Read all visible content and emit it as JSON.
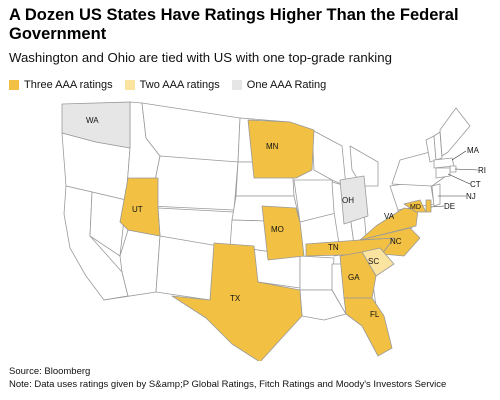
{
  "title": "A Dozen US States Have Ratings Higher Than the Federal Government",
  "subtitle": "Washington and Ohio are tied with US with one top-grade ranking",
  "colors": {
    "three_aaa": "#F2C143",
    "two_aaa": "#FBE3A0",
    "one_aaa": "#E6E6E6",
    "none": "#FFFFFF",
    "border": "#9A9A9A"
  },
  "legend": [
    {
      "label": "Three AAA ratings",
      "color": "#F2C143"
    },
    {
      "label": "Two AAA ratings",
      "color": "#FBE3A0"
    },
    {
      "label": "One AAA Rating",
      "color": "#E6E6E6"
    }
  ],
  "states": [
    {
      "abbr": "WA",
      "aaa_count": 1
    },
    {
      "abbr": "MN",
      "aaa_count": 3
    },
    {
      "abbr": "UT",
      "aaa_count": 3
    },
    {
      "abbr": "MO",
      "aaa_count": 3
    },
    {
      "abbr": "OH",
      "aaa_count": 1
    },
    {
      "abbr": "TX",
      "aaa_count": 3
    },
    {
      "abbr": "TN",
      "aaa_count": 3
    },
    {
      "abbr": "NC",
      "aaa_count": 3
    },
    {
      "abbr": "SC",
      "aaa_count": 2
    },
    {
      "abbr": "GA",
      "aaa_count": 3
    },
    {
      "abbr": "FL",
      "aaa_count": 3
    },
    {
      "abbr": "VA",
      "aaa_count": 3
    },
    {
      "abbr": "MD",
      "aaa_count": 3
    },
    {
      "abbr": "DE",
      "aaa_count": 3
    }
  ],
  "annotations": [
    "MA",
    "RI",
    "CT",
    "NJ",
    "DE"
  ],
  "source": "Source: Bloomberg",
  "note": "Note: Data uses ratings given by S&amp;P Global Ratings, Fitch Ratings and Moody's Investors Service"
}
